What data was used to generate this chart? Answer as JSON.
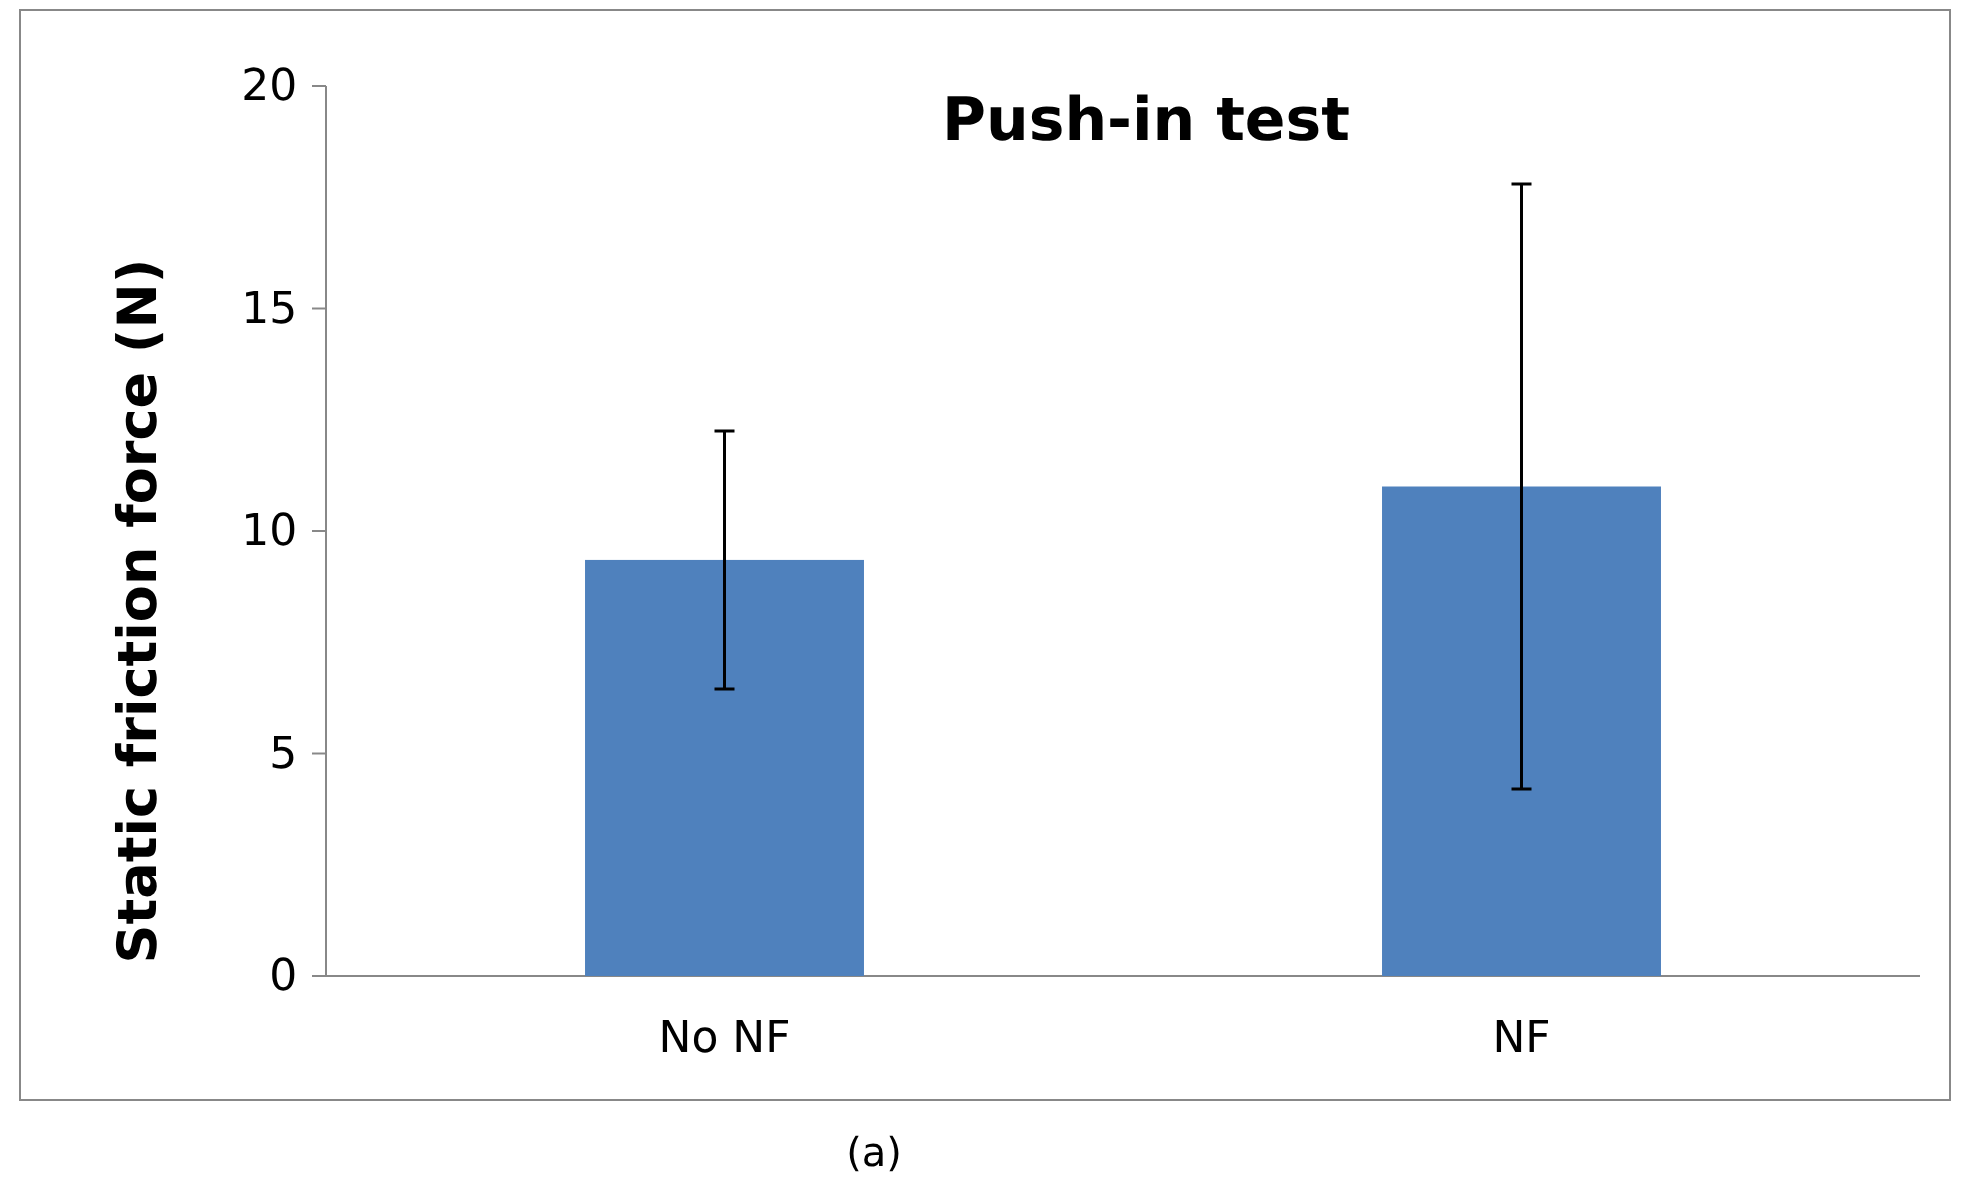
{
  "chart_data": {
    "type": "bar",
    "title": "Push-in test",
    "ylabel": "Static friction force (N)",
    "categories": [
      "No NF",
      "NF"
    ],
    "values": [
      9.35,
      11.0
    ],
    "errors": [
      2.9,
      6.8
    ],
    "color": "#4f81bd",
    "ylim": [
      0,
      20
    ],
    "yticks": [
      0,
      5,
      10,
      15,
      20
    ],
    "grid": false,
    "annotations": [
      "(a)"
    ]
  }
}
